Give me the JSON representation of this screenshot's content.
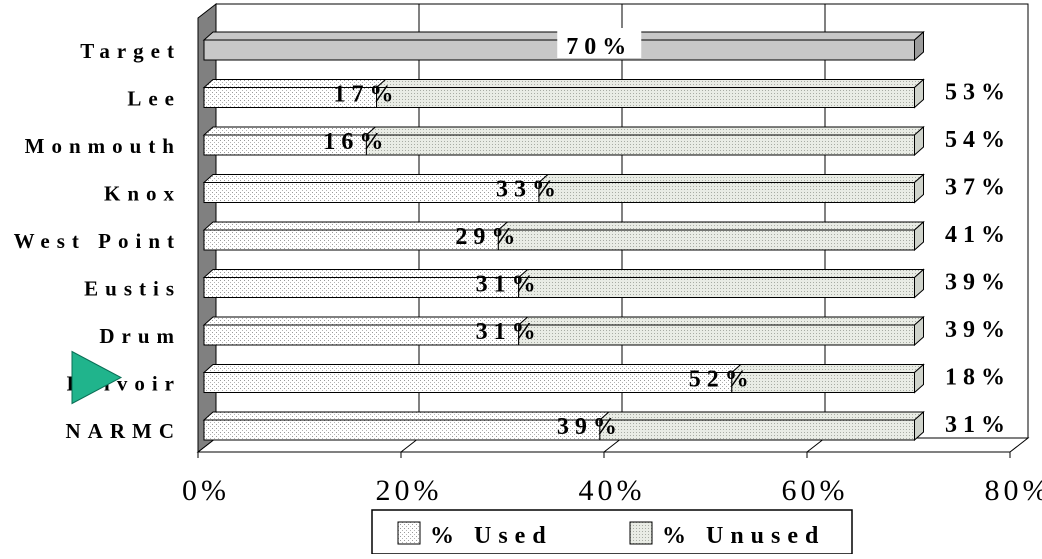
{
  "chart_data": {
    "type": "bar",
    "stacked": true,
    "orientation": "horizontal",
    "categories": [
      "Target",
      "Lee",
      "Monmouth",
      "Knox",
      "West Point",
      "Eustis",
      "Drum",
      "Belvoir",
      "NARMC"
    ],
    "series": [
      {
        "name": "% Used",
        "values": [
          70,
          17,
          16,
          33,
          29,
          31,
          31,
          52,
          39
        ],
        "color": "#ffffff"
      },
      {
        "name": "% Unused",
        "values": [
          0,
          53,
          54,
          37,
          41,
          39,
          39,
          18,
          31
        ],
        "color": "#e4e8e0"
      }
    ],
    "target_color": "#c8c8c8",
    "used_labels": [
      "70%",
      "17%",
      "16%",
      "33%",
      "29%",
      "31%",
      "31%",
      "52%",
      "39%"
    ],
    "unused_labels": [
      "",
      "53%",
      "54%",
      "37%",
      "41%",
      "39%",
      "39%",
      "18%",
      "31%"
    ],
    "xlim": [
      0,
      80
    ],
    "x_ticks": [
      "0%",
      "20%",
      "40%",
      "60%",
      "80%"
    ],
    "gridlines": true,
    "legend_position": "bottom",
    "marker_color": "#20b48c"
  }
}
